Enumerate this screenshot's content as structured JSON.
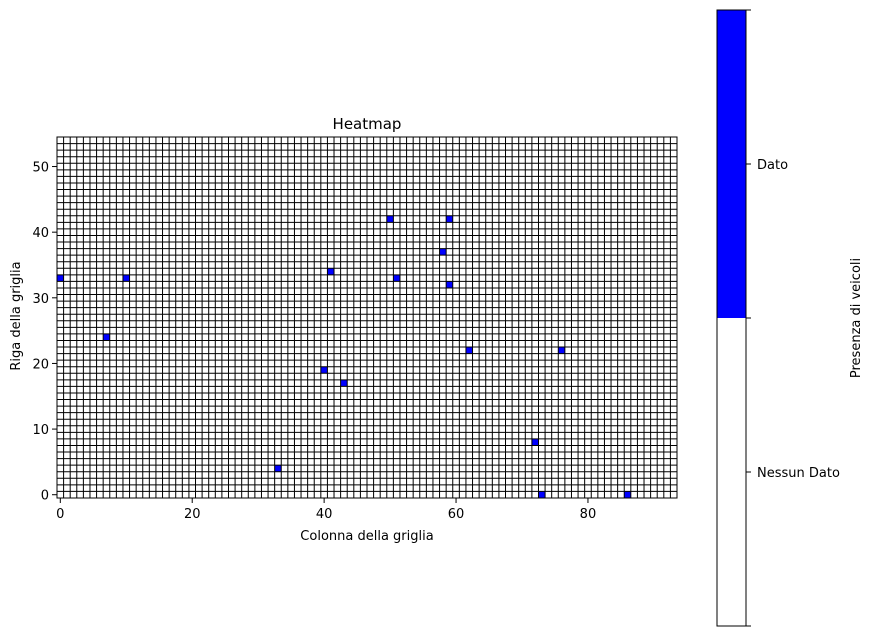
{
  "chart_data": {
    "type": "heatmap",
    "title": "Heatmap",
    "xlabel": "Colonna della griglia",
    "ylabel": "Riga della griglia",
    "grid_columns": 94,
    "grid_rows": 55,
    "xlim": [
      -0.5,
      93.5
    ],
    "ylim": [
      -0.5,
      54.5
    ],
    "xticks": [
      0,
      20,
      40,
      60,
      80
    ],
    "yticks": [
      0,
      10,
      20,
      30,
      40,
      50
    ],
    "grid": true,
    "cell_edge_color": "#000000",
    "colors": {
      "Nessun Dato": "#ffffff",
      "Dato": "#0000ff"
    },
    "points": [
      {
        "x": 0,
        "y": 33
      },
      {
        "x": 7,
        "y": 24
      },
      {
        "x": 10,
        "y": 33
      },
      {
        "x": 33,
        "y": 4
      },
      {
        "x": 40,
        "y": 19
      },
      {
        "x": 41,
        "y": 34
      },
      {
        "x": 43,
        "y": 17
      },
      {
        "x": 50,
        "y": 42
      },
      {
        "x": 51,
        "y": 33
      },
      {
        "x": 58,
        "y": 37
      },
      {
        "x": 59,
        "y": 42
      },
      {
        "x": 59,
        "y": 32
      },
      {
        "x": 62,
        "y": 22
      },
      {
        "x": 72,
        "y": 8
      },
      {
        "x": 73,
        "y": 0
      },
      {
        "x": 76,
        "y": 22
      },
      {
        "x": 86,
        "y": 0
      }
    ],
    "colorbar": {
      "label": "Presenza di veicoli",
      "categories": [
        {
          "label": "Nessun Dato",
          "value": 0,
          "color": "#ffffff"
        },
        {
          "label": "Dato",
          "value": 1,
          "color": "#0000ff"
        }
      ]
    }
  }
}
